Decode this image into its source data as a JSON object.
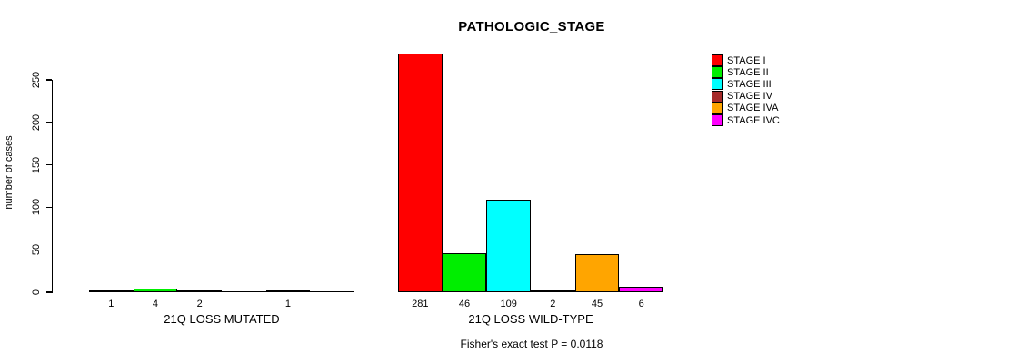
{
  "chart_data": {
    "type": "bar",
    "title": "PATHOLOGIC_STAGE",
    "ylabel": "number of cases",
    "ylim": [
      0,
      290
    ],
    "yticks": [
      0,
      50,
      100,
      150,
      200,
      250
    ],
    "grid": false,
    "legend_position": "right",
    "categories": [
      "STAGE I",
      "STAGE II",
      "STAGE III",
      "STAGE IV",
      "STAGE IVA",
      "STAGE IVC"
    ],
    "colors": [
      "#FF0000",
      "#00EE00",
      "#00FFFF",
      "#A52A2A",
      "#FFA500",
      "#FF00FF"
    ],
    "groups": [
      {
        "label": "21Q LOSS MUTATED",
        "values": [
          1,
          4,
          2,
          0,
          1,
          0
        ],
        "bar_labels": [
          "1",
          "4",
          "2",
          "",
          "1",
          ""
        ]
      },
      {
        "label": "21Q LOSS WILD-TYPE",
        "values": [
          281,
          46,
          109,
          2,
          45,
          6
        ],
        "bar_labels": [
          "281",
          "46",
          "109",
          "2",
          "45",
          "6"
        ]
      }
    ],
    "annotation": "Fisher's exact test P = 0.0118"
  }
}
